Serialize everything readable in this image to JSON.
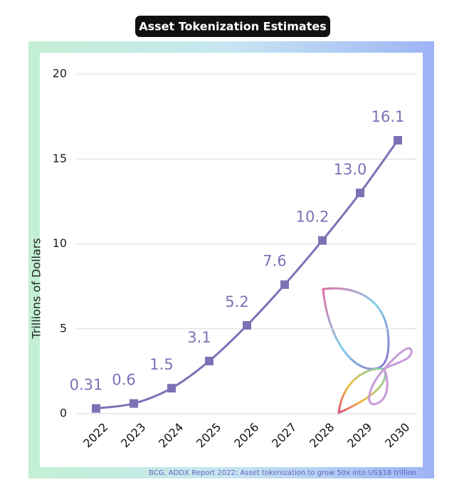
{
  "chart_data": {
    "type": "line",
    "title": "Asset Tokenization Estimates",
    "y_label": "Trillions of Dollars",
    "source": "BCG, ADDX Report 2022: Asset tokenization to grow 50x into US$16 trillion",
    "categories": [
      "2022",
      "2023",
      "2024",
      "2025",
      "2026",
      "2027",
      "2028",
      "2029",
      "2030"
    ],
    "values": [
      0.31,
      0.6,
      1.5,
      3.1,
      5.2,
      7.6,
      10.2,
      13.0,
      16.1
    ],
    "value_labels": [
      "0.31",
      "0.6",
      "1.5",
      "3.1",
      "5.2",
      "7.6",
      "10.2",
      "13.0",
      "16.1"
    ],
    "color": "#7b72b6",
    "ylim": [
      0,
      20
    ],
    "yticks": [
      0,
      5,
      10,
      15,
      20
    ],
    "grid": true
  }
}
